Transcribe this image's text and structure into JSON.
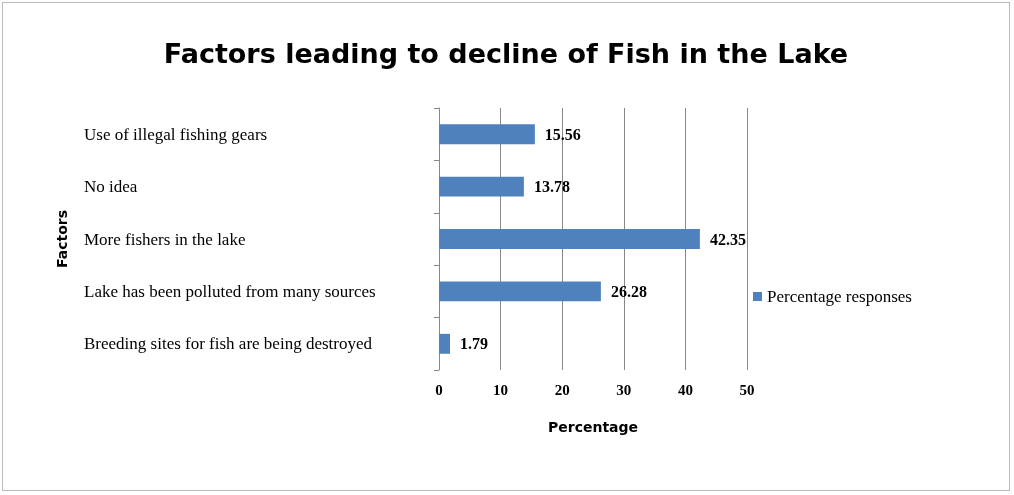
{
  "chart_data": {
    "type": "bar",
    "orientation": "horizontal",
    "title": "Factors leading to decline of Fish in the Lake",
    "xlabel": "Percentage",
    "ylabel": "Factors",
    "categories": [
      "Use of illegal fishing gears",
      "No idea",
      "More fishers in the lake",
      "Lake has been polluted from many sources",
      "Breeding sites for fish are being destroyed"
    ],
    "series": [
      {
        "name": "Percentage responses",
        "color": "#4f81bd",
        "values": [
          15.56,
          13.78,
          42.35,
          26.28,
          1.79
        ]
      }
    ],
    "xlim": [
      0,
      50
    ],
    "xticks": [
      0,
      10,
      20,
      30,
      40,
      50
    ],
    "grid": "x",
    "legend": "right",
    "data_labels": true
  }
}
